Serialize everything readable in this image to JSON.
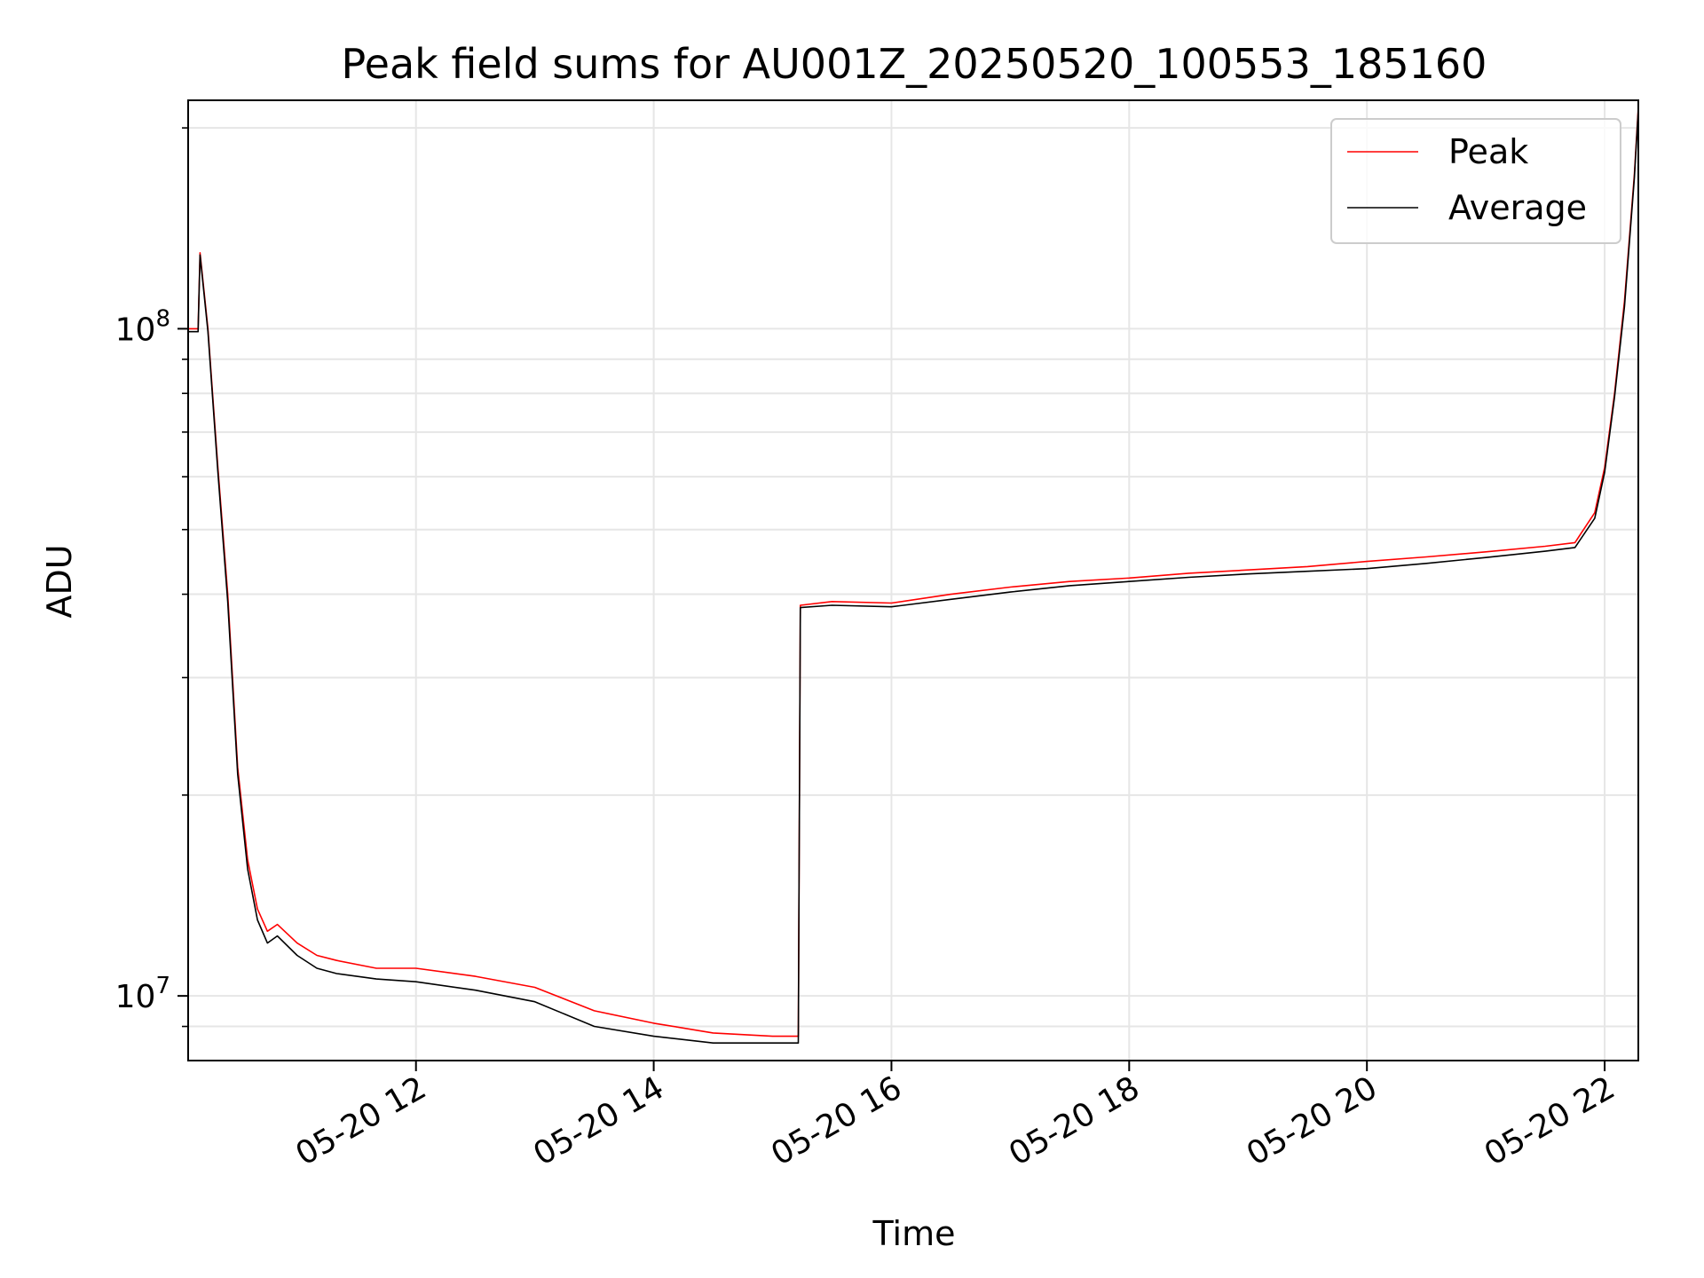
{
  "chart_data": {
    "type": "line",
    "title": "Peak field sums for AU001Z_20250520_100553_185160",
    "xlabel": "Time",
    "ylabel": "ADU",
    "yscale": "log",
    "ylim": [
      8000000,
      220000000
    ],
    "xlim": [
      "2025-05-20 10:05",
      "2025-05-20 22:17"
    ],
    "grid": true,
    "legend_position": "top-right",
    "x_ticks": [
      {
        "value": "2025-05-20 12:00",
        "label": "05-20 12"
      },
      {
        "value": "2025-05-20 14:00",
        "label": "05-20 14"
      },
      {
        "value": "2025-05-20 16:00",
        "label": "05-20 16"
      },
      {
        "value": "2025-05-20 18:00",
        "label": "05-20 18"
      },
      {
        "value": "2025-05-20 20:00",
        "label": "05-20 20"
      },
      {
        "value": "2025-05-20 22:00",
        "label": "05-20 22"
      }
    ],
    "y_ticks": [
      {
        "value": 10000000,
        "base": "10",
        "exp": "7"
      },
      {
        "value": 100000000,
        "base": "10",
        "exp": "8"
      }
    ],
    "y_minor_ticks": [
      9000000,
      20000000,
      30000000,
      40000000,
      50000000,
      60000000,
      70000000,
      80000000,
      90000000,
      200000000
    ],
    "series": [
      {
        "name": "Peak",
        "color": "#ff0000",
        "x": [
          "2025-05-20 10:05",
          "2025-05-20 10:10",
          "2025-05-20 10:11",
          "2025-05-20 10:15",
          "2025-05-20 10:18",
          "2025-05-20 10:20",
          "2025-05-20 10:25",
          "2025-05-20 10:30",
          "2025-05-20 10:35",
          "2025-05-20 10:40",
          "2025-05-20 10:45",
          "2025-05-20 10:50",
          "2025-05-20 11:00",
          "2025-05-20 11:10",
          "2025-05-20 11:20",
          "2025-05-20 11:40",
          "2025-05-20 12:00",
          "2025-05-20 12:30",
          "2025-05-20 13:00",
          "2025-05-20 13:30",
          "2025-05-20 14:00",
          "2025-05-20 14:30",
          "2025-05-20 15:00",
          "2025-05-20 15:13",
          "2025-05-20 15:14",
          "2025-05-20 15:30",
          "2025-05-20 16:00",
          "2025-05-20 16:30",
          "2025-05-20 17:00",
          "2025-05-20 17:30",
          "2025-05-20 18:00",
          "2025-05-20 18:30",
          "2025-05-20 19:00",
          "2025-05-20 19:30",
          "2025-05-20 20:00",
          "2025-05-20 20:30",
          "2025-05-20 21:00",
          "2025-05-20 21:30",
          "2025-05-20 21:45",
          "2025-05-20 21:55",
          "2025-05-20 22:00",
          "2025-05-20 22:05",
          "2025-05-20 22:10",
          "2025-05-20 22:15",
          "2025-05-20 22:17"
        ],
        "values": [
          100000000,
          100000000,
          130000000,
          100000000,
          75000000,
          62000000,
          40000000,
          22000000,
          16000000,
          13500000,
          12500000,
          12800000,
          12000000,
          11500000,
          11300000,
          11000000,
          11000000,
          10700000,
          10300000,
          9500000,
          9100000,
          8800000,
          8700000,
          8700000,
          38500000,
          39000000,
          38800000,
          40000000,
          41000000,
          41800000,
          42300000,
          43000000,
          43500000,
          44000000,
          44800000,
          45500000,
          46300000,
          47200000,
          47800000,
          53000000,
          62000000,
          80000000,
          110000000,
          170000000,
          215000000
        ]
      },
      {
        "name": "Average",
        "color": "#000000",
        "x": [
          "2025-05-20 10:05",
          "2025-05-20 10:10",
          "2025-05-20 10:11",
          "2025-05-20 10:15",
          "2025-05-20 10:18",
          "2025-05-20 10:20",
          "2025-05-20 10:25",
          "2025-05-20 10:30",
          "2025-05-20 10:35",
          "2025-05-20 10:40",
          "2025-05-20 10:45",
          "2025-05-20 10:50",
          "2025-05-20 11:00",
          "2025-05-20 11:10",
          "2025-05-20 11:20",
          "2025-05-20 11:40",
          "2025-05-20 12:00",
          "2025-05-20 12:30",
          "2025-05-20 13:00",
          "2025-05-20 13:30",
          "2025-05-20 14:00",
          "2025-05-20 14:30",
          "2025-05-20 15:00",
          "2025-05-20 15:13",
          "2025-05-20 15:14",
          "2025-05-20 15:30",
          "2025-05-20 16:00",
          "2025-05-20 16:30",
          "2025-05-20 17:00",
          "2025-05-20 17:30",
          "2025-05-20 18:00",
          "2025-05-20 18:30",
          "2025-05-20 19:00",
          "2025-05-20 19:30",
          "2025-05-20 20:00",
          "2025-05-20 20:30",
          "2025-05-20 21:00",
          "2025-05-20 21:30",
          "2025-05-20 21:45",
          "2025-05-20 21:55",
          "2025-05-20 22:00",
          "2025-05-20 22:05",
          "2025-05-20 22:10",
          "2025-05-20 22:15",
          "2025-05-20 22:17"
        ],
        "values": [
          99000000,
          99000000,
          129000000,
          99000000,
          74000000,
          61000000,
          39000000,
          21500000,
          15500000,
          13000000,
          12000000,
          12300000,
          11500000,
          11000000,
          10800000,
          10600000,
          10500000,
          10200000,
          9800000,
          9000000,
          8700000,
          8500000,
          8500000,
          8500000,
          38200000,
          38500000,
          38300000,
          39300000,
          40300000,
          41200000,
          41800000,
          42400000,
          42900000,
          43300000,
          43700000,
          44500000,
          45400000,
          46400000,
          47000000,
          52000000,
          61000000,
          79000000,
          108000000,
          168000000,
          213000000
        ]
      }
    ]
  }
}
